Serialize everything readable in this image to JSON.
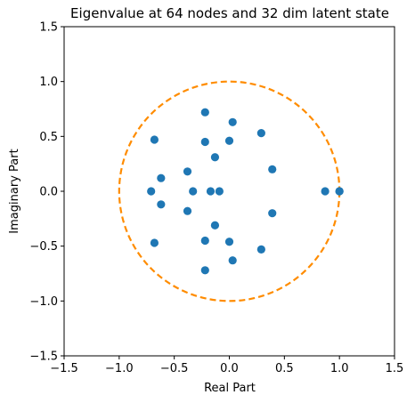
{
  "chart_data": {
    "type": "scatter",
    "title": "Eigenvalue at 64 nodes and 32 dim latent state",
    "xlabel": "Real Part",
    "ylabel": "Imaginary Part",
    "xlim": [
      -1.5,
      1.5
    ],
    "ylim": [
      -1.5,
      1.5
    ],
    "xticks": [
      "−1.5",
      "−1.0",
      "−0.5",
      "0.0",
      "0.5",
      "1.0",
      "1.5"
    ],
    "yticks": [
      "−1.5",
      "−1.0",
      "−0.5",
      "0.0",
      "0.5",
      "1.0",
      "1.5"
    ],
    "xtick_values": [
      -1.5,
      -1.0,
      -0.5,
      0.0,
      0.5,
      1.0,
      1.5
    ],
    "ytick_values": [
      -1.5,
      -1.0,
      -0.5,
      0.0,
      0.5,
      1.0,
      1.5
    ],
    "grid": false,
    "unit_circle": {
      "radius": 1.0,
      "style": "dashed",
      "color": "#ff8c00"
    },
    "points_color": "#1f77b4",
    "x": [
      -0.68,
      -0.68,
      -0.62,
      -0.62,
      -0.71,
      -0.38,
      -0.38,
      -0.33,
      -0.22,
      -0.22,
      -0.22,
      -0.22,
      -0.17,
      -0.13,
      -0.13,
      -0.09,
      0.0,
      0.0,
      0.03,
      0.03,
      0.29,
      0.29,
      0.39,
      0.39,
      0.87,
      1.0,
      1.0
    ],
    "y": [
      0.47,
      -0.47,
      0.12,
      -0.12,
      0.0,
      0.18,
      -0.18,
      0.0,
      0.72,
      -0.72,
      0.45,
      -0.45,
      0.0,
      0.31,
      -0.31,
      0.0,
      0.46,
      -0.46,
      0.63,
      -0.63,
      0.53,
      -0.53,
      0.2,
      -0.2,
      0.0,
      0.0,
      0.0
    ]
  }
}
